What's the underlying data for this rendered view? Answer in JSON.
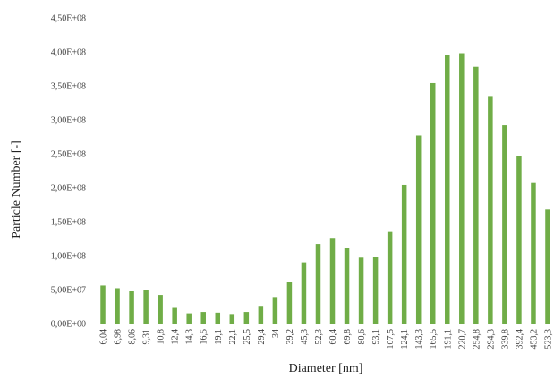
{
  "chart_data": {
    "type": "bar",
    "xlabel": "Diameter [nm]",
    "ylabel": "Particle Number [-]",
    "ylim": [
      0,
      450000000
    ],
    "y_ticks": [
      0,
      50000000,
      100000000,
      150000000,
      200000000,
      250000000,
      300000000,
      350000000,
      400000000,
      450000000
    ],
    "y_tick_labels": [
      "0,00E+00",
      "5,00E+07",
      "1,00E+08",
      "1,50E+08",
      "2,00E+08",
      "2,50E+08",
      "3,00E+08",
      "3,50E+08",
      "4,00E+08",
      "4,50E+08"
    ],
    "grid": false,
    "legend": "none",
    "bar_color": "#70AD47",
    "categories": [
      "6,04",
      "6,98",
      "8,06",
      "9,31",
      "10,8",
      "12,4",
      "14,3",
      "16,5",
      "19,1",
      "22,1",
      "25,5",
      "29,4",
      "34",
      "39,2",
      "45,3",
      "52,3",
      "60,4",
      "69,8",
      "80,6",
      "93,1",
      "107,5",
      "124,1",
      "143,3",
      "165,5",
      "191,1",
      "220,7",
      "254,8",
      "294,3",
      "339,8",
      "392,4",
      "453,2",
      "523,3"
    ],
    "values": [
      56000000,
      52000000,
      48000000,
      50000000,
      42000000,
      23000000,
      15000000,
      17000000,
      16000000,
      14000000,
      17000000,
      26000000,
      39000000,
      61000000,
      90000000,
      117000000,
      126000000,
      111000000,
      97000000,
      98000000,
      136000000,
      204000000,
      277000000,
      354000000,
      395000000,
      398000000,
      378000000,
      335000000,
      292000000,
      247000000,
      207000000,
      168000000
    ]
  }
}
